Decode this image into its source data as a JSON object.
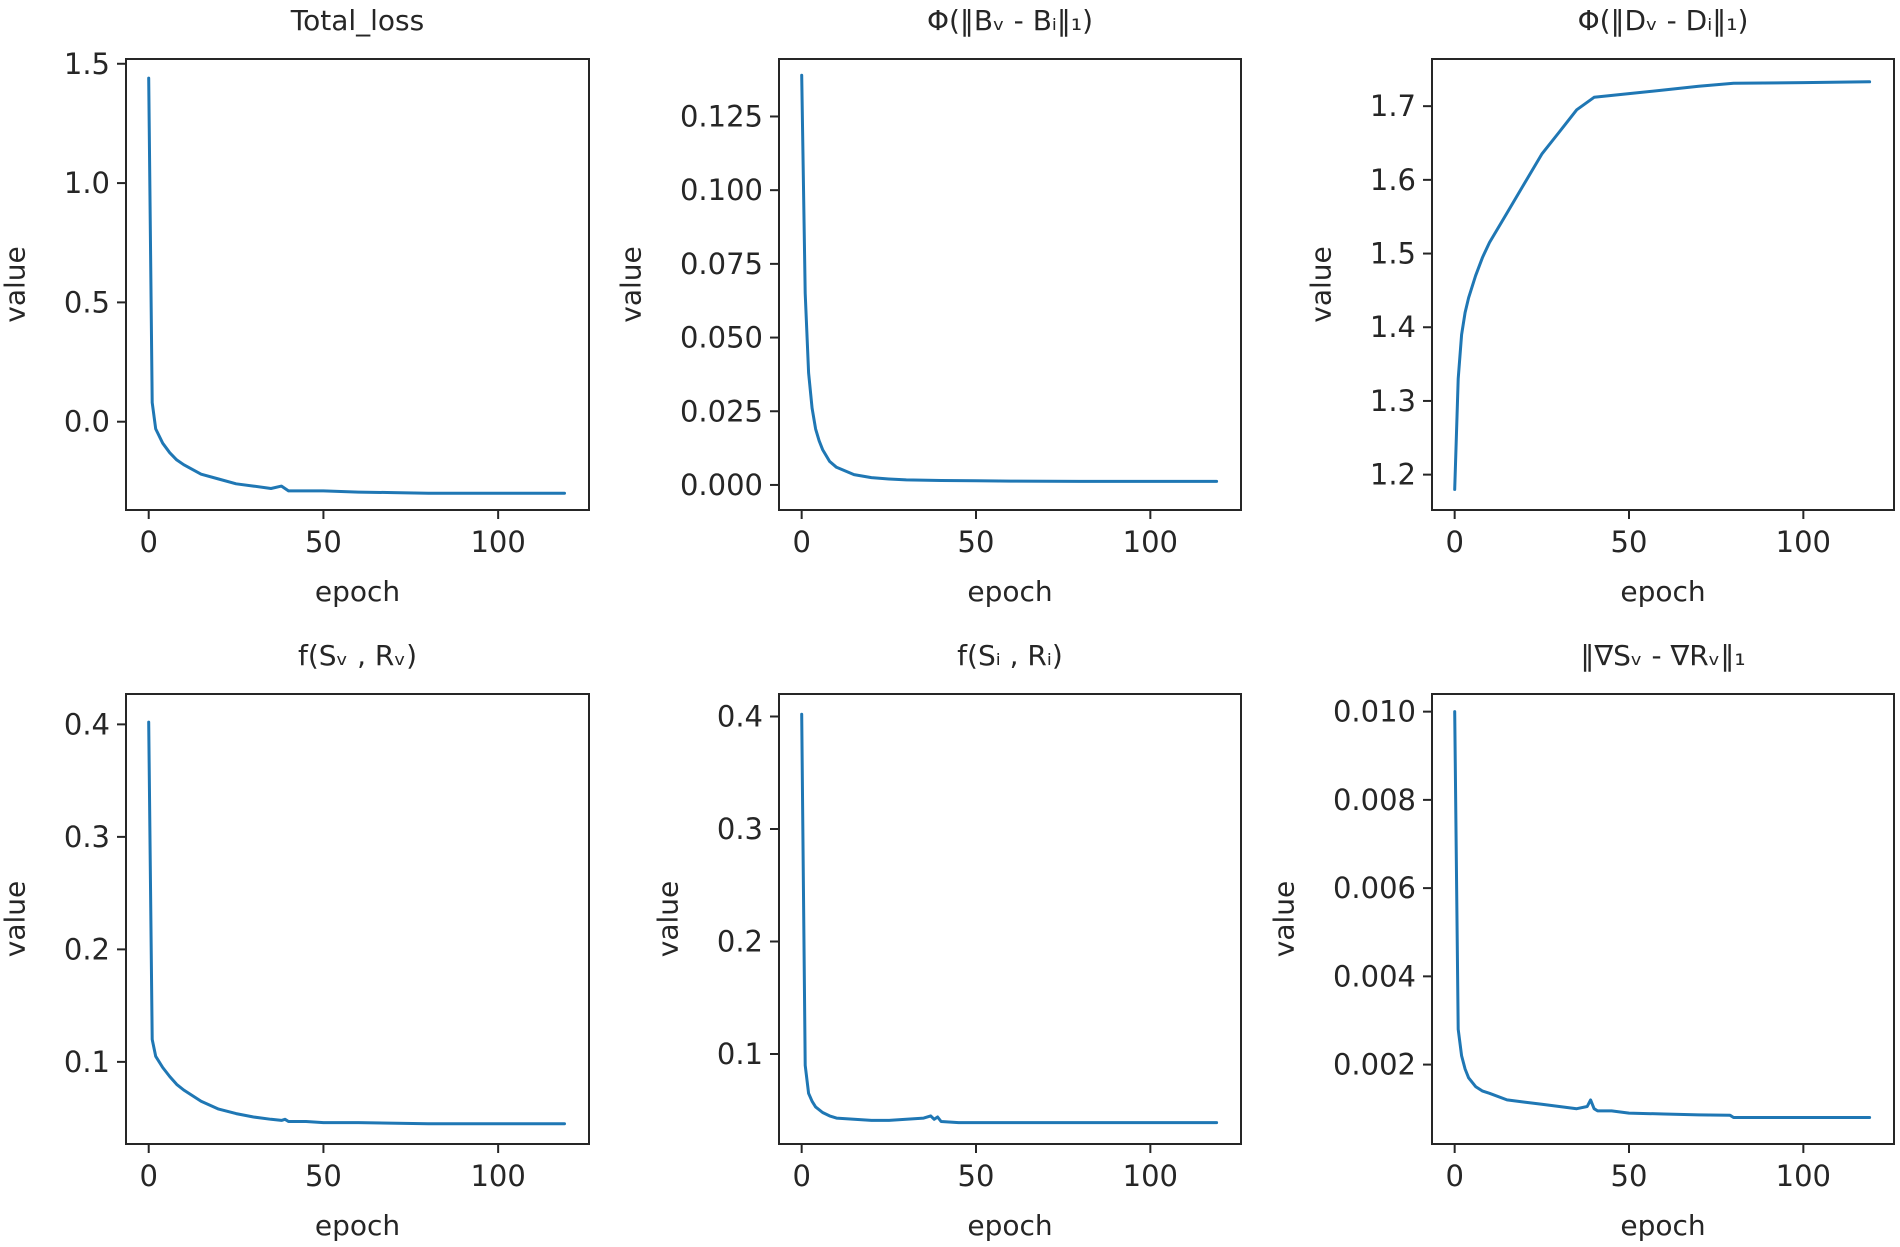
{
  "figure": {
    "line_color": "#1f77b4",
    "axis_color": "#262626"
  },
  "chart_data": [
    {
      "type": "line",
      "title": "Total_loss",
      "xlabel": "epoch",
      "ylabel": "value",
      "xlim": [
        -6.5,
        126
      ],
      "ylim": [
        -0.37,
        1.52
      ],
      "xticks": [
        0,
        50,
        100
      ],
      "xtick_labels": [
        "0",
        "50",
        "100"
      ],
      "yticks": [
        0.0,
        0.5,
        1.0,
        1.5
      ],
      "ytick_labels": [
        "0.0",
        "0.5",
        "1.0",
        "1.5"
      ],
      "grid": false,
      "series": [
        {
          "x": [
            0,
            1,
            2,
            4,
            6,
            8,
            10,
            15,
            20,
            25,
            30,
            35,
            38,
            39,
            40,
            45,
            50,
            60,
            70,
            80,
            90,
            100,
            110,
            119
          ],
          "y": [
            1.44,
            0.08,
            -0.03,
            -0.09,
            -0.13,
            -0.16,
            -0.18,
            -0.22,
            -0.24,
            -0.26,
            -0.27,
            -0.28,
            -0.27,
            -0.28,
            -0.29,
            -0.29,
            -0.29,
            -0.295,
            -0.297,
            -0.3,
            -0.3,
            -0.3,
            -0.3,
            -0.3
          ]
        }
      ]
    },
    {
      "type": "line",
      "title": "Φ(‖Bᵥ - Bᵢ‖₁)",
      "xlabel": "epoch",
      "ylabel": "value",
      "xlim": [
        -6.5,
        126
      ],
      "ylim": [
        -0.0085,
        0.1445
      ],
      "xticks": [
        0,
        50,
        100
      ],
      "xtick_labels": [
        "0",
        "50",
        "100"
      ],
      "yticks": [
        0.0,
        0.025,
        0.05,
        0.075,
        0.1,
        0.125
      ],
      "ytick_labels": [
        "0.000",
        "0.025",
        "0.050",
        "0.075",
        "0.100",
        "0.125"
      ],
      "grid": false,
      "series": [
        {
          "x": [
            0,
            1,
            2,
            3,
            4,
            5,
            6,
            8,
            10,
            15,
            20,
            25,
            30,
            40,
            50,
            60,
            80,
            100,
            119
          ],
          "y": [
            0.139,
            0.065,
            0.038,
            0.026,
            0.019,
            0.015,
            0.012,
            0.008,
            0.006,
            0.0035,
            0.0025,
            0.002,
            0.0017,
            0.0015,
            0.0014,
            0.0013,
            0.0012,
            0.0012,
            0.0012
          ]
        }
      ]
    },
    {
      "type": "line",
      "title": "Φ(‖Dᵥ - Dᵢ‖₁)",
      "xlabel": "epoch",
      "ylabel": "value",
      "xlim": [
        -6.5,
        126
      ],
      "ylim": [
        1.152,
        1.764
      ],
      "xticks": [
        0,
        50,
        100
      ],
      "xtick_labels": [
        "0",
        "50",
        "100"
      ],
      "yticks": [
        1.2,
        1.3,
        1.4,
        1.5,
        1.6,
        1.7
      ],
      "ytick_labels": [
        "1.2",
        "1.3",
        "1.4",
        "1.5",
        "1.6",
        "1.7"
      ],
      "grid": false,
      "series": [
        {
          "x": [
            0,
            1,
            2,
            3,
            4,
            6,
            8,
            10,
            15,
            20,
            25,
            30,
            35,
            40,
            50,
            60,
            70,
            80,
            100,
            119
          ],
          "y": [
            1.18,
            1.33,
            1.39,
            1.42,
            1.44,
            1.47,
            1.495,
            1.515,
            1.555,
            1.595,
            1.635,
            1.665,
            1.695,
            1.712,
            1.717,
            1.722,
            1.727,
            1.731,
            1.732,
            1.733
          ]
        }
      ]
    },
    {
      "type": "line",
      "title": "f(Sᵥ , Rᵥ)",
      "xlabel": "epoch",
      "ylabel": "value",
      "xlim": [
        -6.5,
        126
      ],
      "ylim": [
        0.027,
        0.427
      ],
      "xticks": [
        0,
        50,
        100
      ],
      "xtick_labels": [
        "0",
        "50",
        "100"
      ],
      "yticks": [
        0.1,
        0.2,
        0.3,
        0.4
      ],
      "ytick_labels": [
        "0.1",
        "0.2",
        "0.3",
        "0.4"
      ],
      "grid": false,
      "series": [
        {
          "x": [
            0,
            1,
            2,
            4,
            6,
            8,
            10,
            15,
            20,
            25,
            30,
            35,
            38,
            39,
            40,
            45,
            50,
            60,
            80,
            100,
            119
          ],
          "y": [
            0.402,
            0.12,
            0.105,
            0.095,
            0.087,
            0.08,
            0.075,
            0.065,
            0.058,
            0.054,
            0.051,
            0.049,
            0.048,
            0.049,
            0.047,
            0.047,
            0.046,
            0.046,
            0.045,
            0.045,
            0.045
          ]
        }
      ]
    },
    {
      "type": "line",
      "title": "f(Sᵢ , Rᵢ)",
      "xlabel": "epoch",
      "ylabel": "value",
      "xlim": [
        -6.5,
        126
      ],
      "ylim": [
        0.02,
        0.42
      ],
      "xticks": [
        0,
        50,
        100
      ],
      "xtick_labels": [
        "0",
        "50",
        "100"
      ],
      "yticks": [
        0.1,
        0.2,
        0.3,
        0.4
      ],
      "ytick_labels": [
        "0.1",
        "0.2",
        "0.3",
        "0.4"
      ],
      "grid": false,
      "series": [
        {
          "x": [
            0,
            1,
            2,
            3,
            4,
            6,
            8,
            10,
            15,
            20,
            25,
            30,
            35,
            37,
            38,
            39,
            40,
            45,
            50,
            60,
            80,
            100,
            119
          ],
          "y": [
            0.402,
            0.09,
            0.065,
            0.058,
            0.053,
            0.048,
            0.045,
            0.043,
            0.042,
            0.041,
            0.041,
            0.042,
            0.043,
            0.045,
            0.042,
            0.044,
            0.04,
            0.039,
            0.039,
            0.039,
            0.039,
            0.039,
            0.039
          ]
        }
      ]
    },
    {
      "type": "line",
      "title": "‖∇Sᵥ - ∇Rᵥ‖₁",
      "xlabel": "epoch",
      "ylabel": "value",
      "xlim": [
        -6.5,
        126
      ],
      "ylim": [
        0.0002,
        0.0104
      ],
      "xticks": [
        0,
        50,
        100
      ],
      "xtick_labels": [
        "0",
        "50",
        "100"
      ],
      "yticks": [
        0.002,
        0.004,
        0.006,
        0.008,
        0.01
      ],
      "ytick_labels": [
        "0.002",
        "0.004",
        "0.006",
        "0.008",
        "0.010"
      ],
      "grid": false,
      "series": [
        {
          "x": [
            0,
            1,
            2,
            3,
            4,
            6,
            8,
            10,
            15,
            20,
            25,
            30,
            35,
            38,
            39,
            40,
            41,
            45,
            50,
            60,
            70,
            79,
            80,
            100,
            119
          ],
          "y": [
            0.01,
            0.0028,
            0.0022,
            0.0019,
            0.0017,
            0.0015,
            0.0014,
            0.00135,
            0.0012,
            0.00115,
            0.0011,
            0.00105,
            0.001,
            0.00105,
            0.0012,
            0.001,
            0.00095,
            0.00095,
            0.0009,
            0.00088,
            0.00086,
            0.00085,
            0.0008,
            0.0008,
            0.0008
          ]
        }
      ]
    }
  ]
}
